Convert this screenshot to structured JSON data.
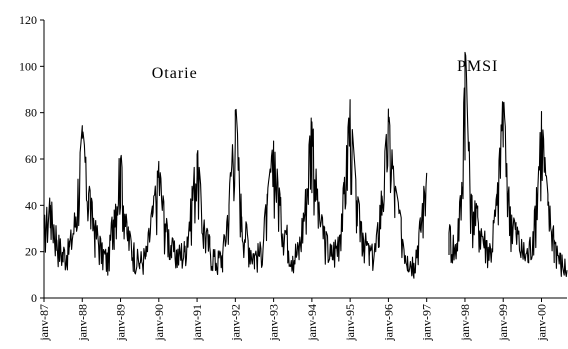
{
  "chart_data": {
    "type": "line",
    "title": "",
    "xlabel": "",
    "ylabel": "",
    "ylim": [
      0,
      120
    ],
    "yticks": [
      0,
      20,
      40,
      60,
      80,
      100,
      120
    ],
    "xlim": [
      "1987-01",
      "2000-09"
    ],
    "xtick_labels": [
      "janv-87",
      "janv-88",
      "janv-89",
      "janv-90",
      "janv-91",
      "janv-92",
      "janv-93",
      "janv-94",
      "janv-95",
      "janv-96",
      "janv-97",
      "janv-98",
      "janv-99",
      "janv-00"
    ],
    "grid": false,
    "legend": "none",
    "line_color": "#000000",
    "annotations": [
      {
        "text": "Otarie",
        "x": "1990-06",
        "y": 95
      },
      {
        "text": "PMSI",
        "x": "1998-05",
        "y": 98
      }
    ],
    "series": [
      {
        "name": "Otarie",
        "x": [
          "1987-01",
          "1987-03",
          "1987-05",
          "1987-07",
          "1987-09",
          "1987-11",
          "1988-01",
          "1988-03",
          "1988-05",
          "1988-07",
          "1988-09",
          "1988-11",
          "1989-01",
          "1989-03",
          "1989-05",
          "1989-07",
          "1989-09",
          "1989-11",
          "1990-01",
          "1990-03",
          "1990-05",
          "1990-07",
          "1990-09",
          "1990-11",
          "1991-01",
          "1991-03",
          "1991-05",
          "1991-07",
          "1991-09",
          "1991-11",
          "1992-01",
          "1992-03",
          "1992-05",
          "1992-07",
          "1992-09",
          "1992-11",
          "1993-01",
          "1993-03",
          "1993-05",
          "1993-07",
          "1993-09",
          "1993-11",
          "1994-01",
          "1994-03",
          "1994-05",
          "1994-07",
          "1994-09",
          "1994-11",
          "1995-01",
          "1995-03",
          "1995-05",
          "1995-07",
          "1995-09",
          "1995-11",
          "1996-01",
          "1996-03",
          "1996-05",
          "1996-07",
          "1996-09",
          "1996-11",
          "1997-01"
        ],
        "y": [
          30,
          40,
          25,
          18,
          22,
          35,
          69,
          45,
          30,
          20,
          15,
          38,
          60,
          28,
          20,
          15,
          18,
          35,
          54,
          32,
          22,
          18,
          20,
          38,
          62,
          30,
          22,
          15,
          18,
          40,
          81,
          35,
          25,
          18,
          20,
          40,
          64,
          40,
          28,
          18,
          20,
          42,
          76,
          38,
          26,
          18,
          22,
          45,
          80,
          42,
          28,
          18,
          20,
          44,
          76,
          45,
          30,
          18,
          15,
          30,
          54
        ]
      },
      {
        "name": "PMSI",
        "x": [
          "1997-08",
          "1997-10",
          "1997-12",
          "1998-01",
          "1998-03",
          "1998-05",
          "1998-07",
          "1998-09",
          "1998-11",
          "1999-01",
          "1999-03",
          "1999-05",
          "1999-07",
          "1999-09",
          "1999-11",
          "2000-01",
          "2000-03",
          "2000-05",
          "2000-07",
          "2000-09"
        ],
        "y": [
          28,
          20,
          45,
          106,
          40,
          35,
          25,
          20,
          40,
          84,
          38,
          28,
          20,
          18,
          35,
          75,
          40,
          25,
          15,
          12
        ]
      }
    ]
  }
}
